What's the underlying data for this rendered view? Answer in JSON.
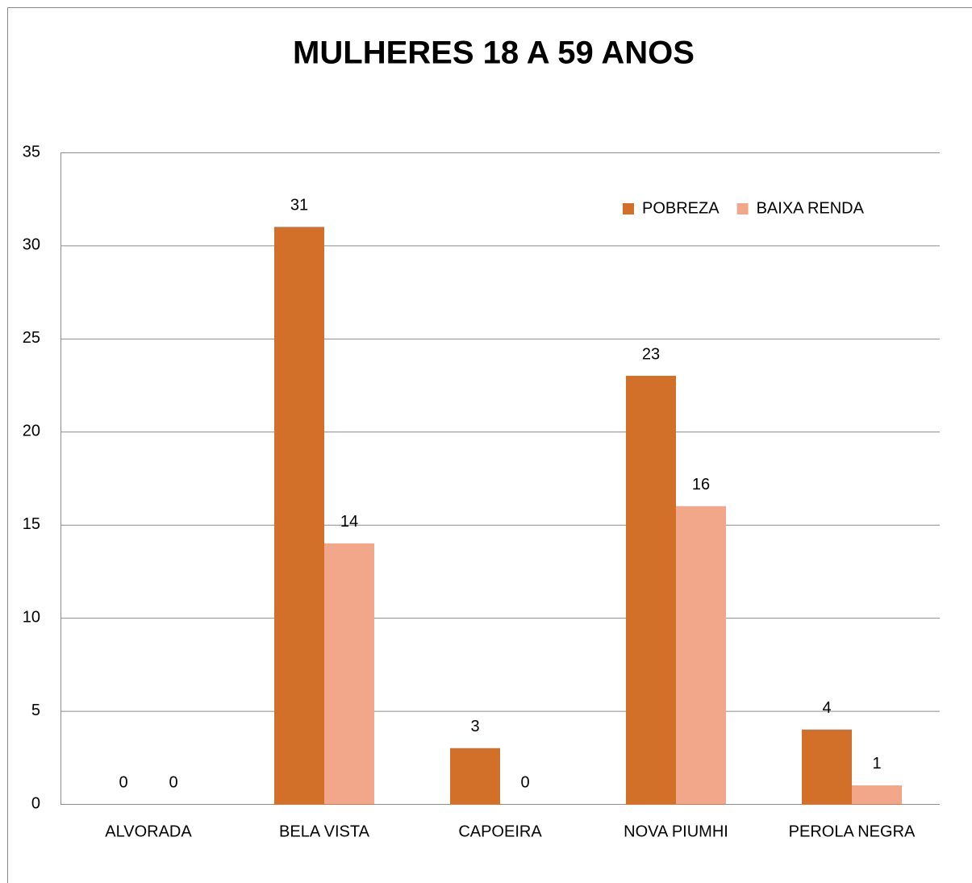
{
  "chart_data": {
    "type": "bar",
    "title": "MULHERES 18 A 59 ANOS",
    "categories": [
      "ALVORADA",
      "BELA VISTA",
      "CAPOEIRA",
      "NOVA PIUMHI",
      "PEROLA NEGRA"
    ],
    "series": [
      {
        "name": "POBREZA",
        "color": "#d2702a",
        "values": [
          0,
          31,
          3,
          23,
          4
        ]
      },
      {
        "name": "BAIXA RENDA",
        "color": "#f2a78a",
        "values": [
          0,
          14,
          0,
          16,
          1
        ]
      }
    ],
    "ylim": [
      0,
      35
    ],
    "yticks": [
      0,
      5,
      10,
      15,
      20,
      25,
      30,
      35
    ],
    "grid": true,
    "legend": "upper right"
  }
}
